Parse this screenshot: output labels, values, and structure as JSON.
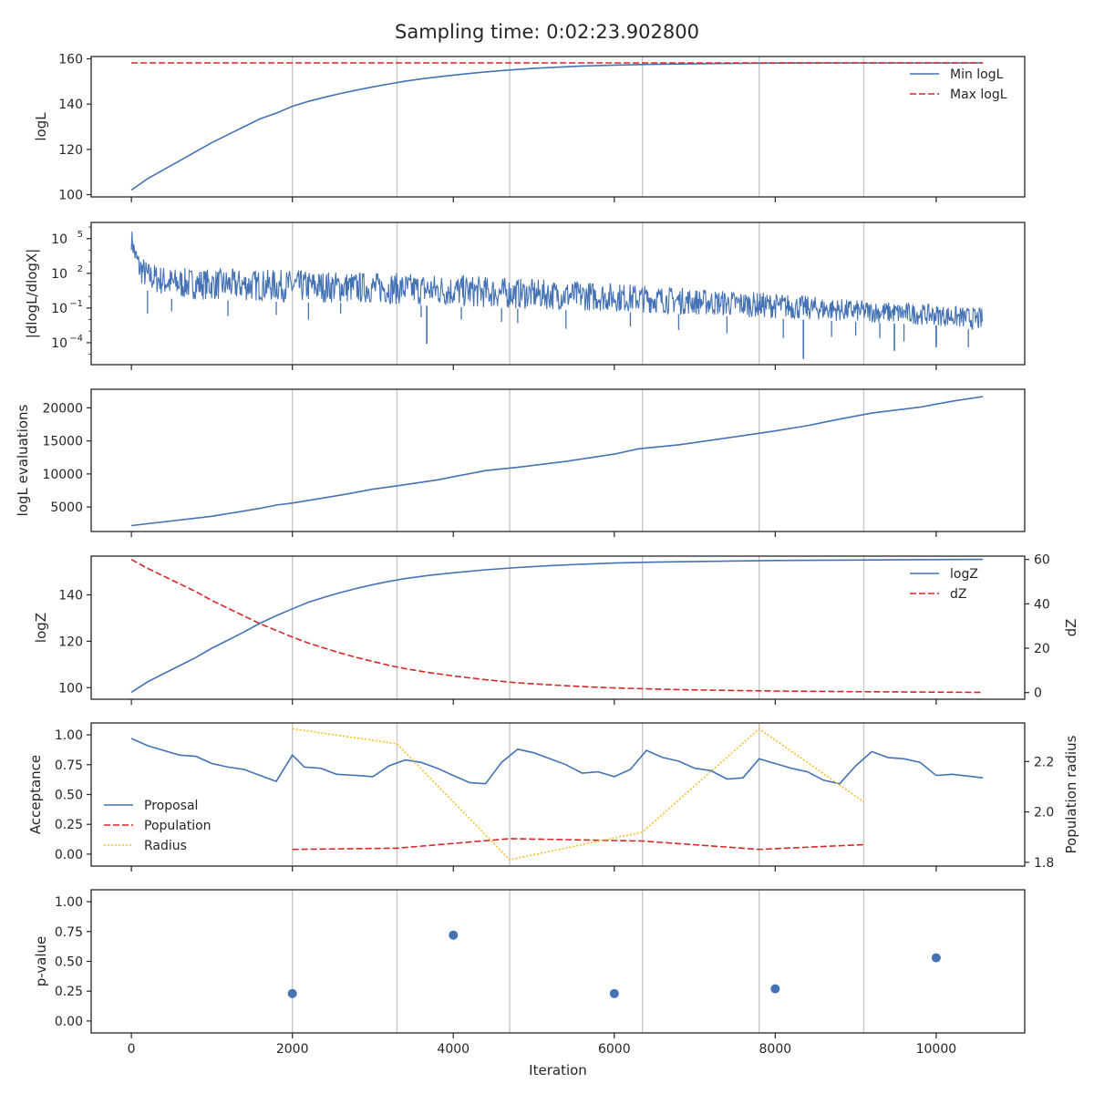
{
  "figure": {
    "title": "Sampling time: 0:02:23.902800",
    "xlabel": "Iteration"
  },
  "colors": {
    "blue": "#4472b4",
    "red": "#d62728",
    "gold": "#f5c02a",
    "vline": "#c8c8c8",
    "axis": "#262626"
  },
  "chart_data": [
    {
      "id": "p1",
      "type": "line",
      "ylabel": "logL",
      "xlim": [
        -500,
        11100
      ],
      "ylim": [
        99,
        161
      ],
      "yticks": [
        100,
        120,
        140,
        160
      ],
      "legend": "top-right",
      "series": [
        {
          "name": "Min logL",
          "style": "solid",
          "color": "#4472b4",
          "x": [
            0,
            200,
            400,
            600,
            800,
            1000,
            1200,
            1400,
            1600,
            1800,
            2000,
            2200,
            2400,
            2600,
            2800,
            3000,
            3200,
            3400,
            3600,
            3800,
            4000,
            4200,
            4400,
            4600,
            4800,
            5000,
            5300,
            5600,
            6000,
            6400,
            6800,
            7200,
            7600,
            8000,
            8500,
            9000,
            9500,
            10000,
            10580
          ],
          "y": [
            102,
            107,
            111,
            115,
            119,
            123,
            126.5,
            130,
            133.5,
            136,
            139,
            141.2,
            143,
            144.7,
            146.2,
            147.6,
            148.9,
            150.1,
            151.1,
            152,
            152.8,
            153.5,
            154.2,
            154.8,
            155.3,
            155.8,
            156.3,
            156.8,
            157.2,
            157.5,
            157.7,
            157.9,
            158,
            158.1,
            158.15,
            158.2,
            158.2,
            158.2,
            158.2
          ]
        },
        {
          "name": "Max logL",
          "style": "dashed",
          "color": "#d62728",
          "x": [
            0,
            10580
          ],
          "y": [
            158.2,
            158.2
          ]
        }
      ]
    },
    {
      "id": "p2",
      "type": "line",
      "ylabel": "|dlogL/dlogX|",
      "yscale": "log",
      "xlim": [
        -500,
        11100
      ],
      "ylim_log10": [
        -5.9,
        6.4
      ],
      "yticks": [
        {
          "base": "10",
          "exp": "5",
          "v": 5
        },
        {
          "base": "10",
          "exp": "2",
          "v": 2
        },
        {
          "base": "10",
          "exp": "−1",
          "v": -1
        },
        {
          "base": "10",
          "exp": "−4",
          "v": -4
        }
      ],
      "series": [
        {
          "name": "",
          "style": "solid",
          "color": "#4472b4",
          "envelope_x": [
            0,
            50,
            100,
            200,
            500,
            1000,
            2000,
            3000,
            4000,
            5000,
            6000,
            7000,
            8000,
            9000,
            10000,
            10580
          ],
          "upper_log10": [
            6,
            4.5,
            3.8,
            3,
            2.5,
            2.4,
            2.3,
            2.1,
            1.9,
            1.5,
            1.2,
            0.7,
            0.3,
            -0.3,
            -0.7,
            -1
          ],
          "lower_log10": [
            4,
            2.5,
            1.2,
            0.5,
            -0.2,
            -0.3,
            -0.5,
            -0.6,
            -0.9,
            -1.1,
            -1.3,
            -1.6,
            -1.9,
            -2.2,
            -2.5,
            -3
          ],
          "spikes_x": [
            200,
            500,
            1200,
            1800,
            2200,
            2600,
            3600,
            4100,
            4600,
            4800,
            5400,
            6200,
            6800,
            7400,
            8100,
            8700,
            9000,
            9300,
            9600,
            10000,
            10400
          ],
          "spikes_log10": [
            -1.5,
            -1.3,
            -1.7,
            -1.6,
            -2,
            -1.5,
            -1.8,
            -2,
            -2.2,
            -2.3,
            -2.8,
            -2.6,
            -2.9,
            -3.2,
            -3.6,
            -3.5,
            -3.4,
            -3.6,
            -3.9,
            -4.1,
            -4.4
          ],
          "deep_spikes_x": [
            3670,
            8350,
            9480,
            10000
          ],
          "deep_spikes_log10": [
            -4.1,
            -5.4,
            -4.7,
            -4.4
          ]
        }
      ]
    },
    {
      "id": "p3",
      "type": "line",
      "ylabel": "logL evaluations",
      "xlim": [
        -500,
        11100
      ],
      "ylim": [
        1300,
        22800
      ],
      "yticks": [
        5000,
        10000,
        15000,
        20000
      ],
      "series": [
        {
          "name": "",
          "style": "solid",
          "color": "#4472b4",
          "x": [
            0,
            1000,
            1600,
            1800,
            2000,
            2600,
            3000,
            3300,
            3800,
            4400,
            4800,
            5400,
            6000,
            6300,
            6800,
            7200,
            7600,
            8000,
            8400,
            8800,
            9200,
            9800,
            10200,
            10580
          ],
          "y": [
            2200,
            3600,
            4800,
            5300,
            5600,
            6800,
            7700,
            8200,
            9100,
            10500,
            11000,
            11900,
            13000,
            13800,
            14400,
            15100,
            15800,
            16500,
            17300,
            18300,
            19200,
            20100,
            21000,
            21700
          ]
        }
      ]
    },
    {
      "id": "p4",
      "type": "line",
      "ylabel": "logZ",
      "ylabel2": "dZ",
      "legend": "top-right",
      "xlim": [
        -500,
        11100
      ],
      "ylim": [
        95,
        156.7
      ],
      "yticks": [
        100,
        120,
        140
      ],
      "ylim2": [
        -3,
        61.5
      ],
      "yticks2": [
        0,
        20,
        40,
        60
      ],
      "series": [
        {
          "name": "logZ",
          "style": "solid",
          "color": "#4472b4",
          "axis": "left",
          "x": [
            0,
            200,
            400,
            600,
            800,
            1000,
            1200,
            1400,
            1600,
            1800,
            2000,
            2200,
            2400,
            2600,
            2800,
            3000,
            3200,
            3400,
            3700,
            4000,
            4400,
            4800,
            5200,
            5600,
            6000,
            6500,
            7000,
            8000,
            9000,
            10000,
            10580
          ],
          "y": [
            98,
            102.5,
            106,
            109.5,
            113,
            117,
            120.5,
            124,
            127.8,
            131,
            134,
            136.8,
            139,
            141,
            142.8,
            144.4,
            145.8,
            147,
            148.4,
            149.5,
            150.8,
            151.8,
            152.6,
            153.2,
            153.7,
            154.1,
            154.4,
            154.8,
            155,
            155.2,
            155.3
          ]
        },
        {
          "name": "dZ",
          "style": "dashed",
          "color": "#d62728",
          "axis": "right",
          "x": [
            0,
            200,
            400,
            600,
            800,
            1000,
            1200,
            1400,
            1600,
            1800,
            2000,
            2200,
            2400,
            2600,
            2800,
            3000,
            3200,
            3400,
            3700,
            4000,
            4400,
            4800,
            5200,
            5600,
            6000,
            6500,
            7000,
            8000,
            9000,
            10000,
            10580
          ],
          "y": [
            60,
            56,
            52.5,
            49,
            45.5,
            41.5,
            38,
            34.5,
            31,
            28,
            25,
            22.3,
            20,
            17.8,
            15.8,
            14,
            12.3,
            10.8,
            9,
            7.5,
            5.8,
            4.4,
            3.5,
            2.7,
            2.1,
            1.6,
            1.2,
            0.7,
            0.4,
            0.2,
            0.1
          ]
        }
      ]
    },
    {
      "id": "p5",
      "type": "line",
      "ylabel": "Acceptance",
      "ylabel2": "Population radius",
      "legend": "center-left",
      "xlim": [
        -500,
        11100
      ],
      "ylim": [
        -0.1,
        1.1
      ],
      "yticks": [
        0.0,
        0.25,
        0.5,
        0.75,
        1.0
      ],
      "ylim2": [
        1.785,
        2.353
      ],
      "yticks2": [
        1.8,
        2.0,
        2.2
      ],
      "series": [
        {
          "name": "Proposal",
          "style": "solid",
          "color": "#4472b4",
          "axis": "left",
          "x": [
            0,
            200,
            400,
            600,
            800,
            1000,
            1200,
            1400,
            1600,
            1800,
            2000,
            2150,
            2350,
            2550,
            2800,
            3000,
            3200,
            3400,
            3600,
            3800,
            4000,
            4200,
            4400,
            4600,
            4800,
            5000,
            5200,
            5400,
            5600,
            5800,
            6000,
            6200,
            6400,
            6600,
            6800,
            7000,
            7200,
            7400,
            7600,
            7800,
            8000,
            8200,
            8400,
            8600,
            8800,
            9000,
            9200,
            9400,
            9600,
            9800,
            10000,
            10200,
            10580
          ],
          "y": [
            0.97,
            0.91,
            0.87,
            0.83,
            0.82,
            0.76,
            0.73,
            0.71,
            0.66,
            0.61,
            0.83,
            0.73,
            0.72,
            0.67,
            0.66,
            0.65,
            0.74,
            0.79,
            0.77,
            0.72,
            0.66,
            0.6,
            0.59,
            0.77,
            0.88,
            0.85,
            0.8,
            0.75,
            0.68,
            0.69,
            0.65,
            0.71,
            0.87,
            0.81,
            0.78,
            0.72,
            0.7,
            0.63,
            0.64,
            0.8,
            0.76,
            0.72,
            0.69,
            0.62,
            0.59,
            0.74,
            0.86,
            0.81,
            0.8,
            0.77,
            0.66,
            0.67,
            0.64
          ]
        },
        {
          "name": "Population",
          "style": "dashed",
          "color": "#d62728",
          "axis": "left",
          "x": [
            2000,
            3300,
            4700,
            6350,
            7800,
            9100
          ],
          "y": [
            0.04,
            0.05,
            0.13,
            0.11,
            0.04,
            0.08
          ]
        },
        {
          "name": "Radius",
          "style": "dotted",
          "color": "#f5c02a",
          "axis": "right",
          "x": [
            2000,
            3300,
            4700,
            6350,
            7800,
            9100
          ],
          "y": [
            2.33,
            2.27,
            1.81,
            1.92,
            2.33,
            2.04
          ]
        }
      ]
    },
    {
      "id": "p6",
      "type": "scatter",
      "ylabel": "p-value",
      "xlim": [
        -500,
        11100
      ],
      "ylim": [
        -0.1,
        1.1
      ],
      "yticks": [
        0.0,
        0.25,
        0.5,
        0.75,
        1.0
      ],
      "xticks": [
        0,
        2000,
        4000,
        6000,
        8000,
        10000
      ],
      "series": [
        {
          "name": "",
          "color": "#4472b4",
          "x": [
            2000,
            4000,
            6000,
            8000,
            10000
          ],
          "y": [
            0.23,
            0.72,
            0.23,
            0.27,
            0.53
          ]
        }
      ]
    }
  ],
  "vlines_x": [
    2000,
    3300,
    4700,
    6350,
    7800,
    9100
  ],
  "xticks": [
    0,
    2000,
    4000,
    6000,
    8000,
    10000
  ]
}
